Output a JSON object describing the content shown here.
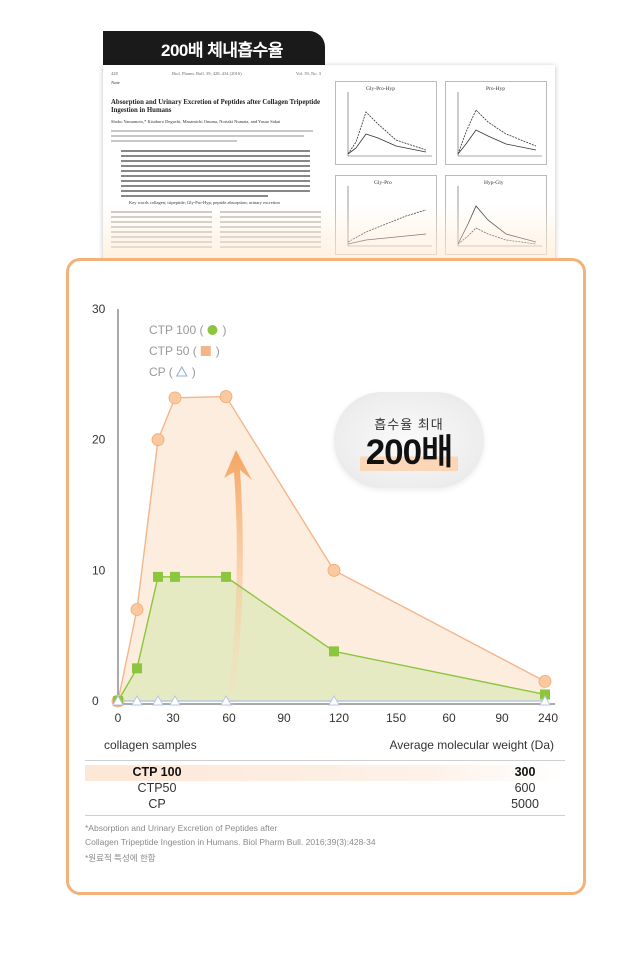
{
  "header_tag": "200배 체내흡수율",
  "paper": {
    "journal_left": "Biol. Pharm. Bull. 39, 428–434 (2016)",
    "page_num": "428",
    "vol": "Vol. 39, No. 3",
    "note": "Note",
    "title": "Absorption and Urinary Excretion of Peptides after Collagen Tripeptide Ingestion in Humans",
    "authors": "Shoko Yamamoto,* Kisaburo Deguchi, Masamichi Onuma, Noriaki Numata, and Yasuo Sakai",
    "key_words": "Key words   collagen; tripeptide; Gly-Pro-Hyp; peptide absorption; urinary excretion",
    "fig_titles": [
      "Gly-Pro-Hyp",
      "Pro-Hyp",
      "Gly-Pro",
      "Hyp-Gly"
    ]
  },
  "chart_data": {
    "type": "line",
    "x": [
      0,
      10,
      20,
      30,
      60,
      120,
      240
    ],
    "x_tick_labels": [
      "0",
      "30",
      "60",
      "90",
      "120",
      "150",
      "60",
      "90",
      "240"
    ],
    "y_ticks": [
      "0",
      "10",
      "20",
      "30"
    ],
    "ylim": [
      0,
      30
    ],
    "series": [
      {
        "name": "CTP 100",
        "marker": "circle",
        "values": [
          0,
          7,
          20,
          23.2,
          23.3,
          10,
          1.5
        ],
        "color": "#f5b58a"
      },
      {
        "name": "CTP 50",
        "marker": "square",
        "values": [
          0,
          2.5,
          9.5,
          9.5,
          9.5,
          3.8,
          0.5
        ],
        "color": "#8cc63f"
      },
      {
        "name": "CP",
        "marker": "triangle",
        "values": [
          0,
          0,
          0,
          0,
          0,
          0,
          0
        ],
        "color": "#b5c8e3"
      }
    ],
    "legend": [
      {
        "label": "CTP 100 (",
        "icon": "circle",
        "color": "#8cc63f"
      },
      {
        "label": "CTP 50 (",
        "icon": "square",
        "color": "#f5b58a"
      },
      {
        "label": "CP (",
        "icon": "triangle",
        "color": "#9aaed6"
      }
    ],
    "grid": false
  },
  "callout": {
    "small": "흡수율 최대",
    "big": "200배"
  },
  "table": {
    "col_left": "collagen samples",
    "col_right": "Average molecular weight (Da)",
    "rows": [
      {
        "name": "CTP 100",
        "value": "300",
        "highlight": true
      },
      {
        "name": "CTP50",
        "value": "600",
        "highlight": false
      },
      {
        "name": "CP",
        "value": "5000",
        "highlight": false
      }
    ]
  },
  "notes": [
    "*Absorption and Urinary Excretion of Peptides after",
    "Collagen Tripeptide Ingestion in Humans. Biol Pharm Bull. 2016;39(3):428-34",
    "*원료적 특성에 한함"
  ]
}
